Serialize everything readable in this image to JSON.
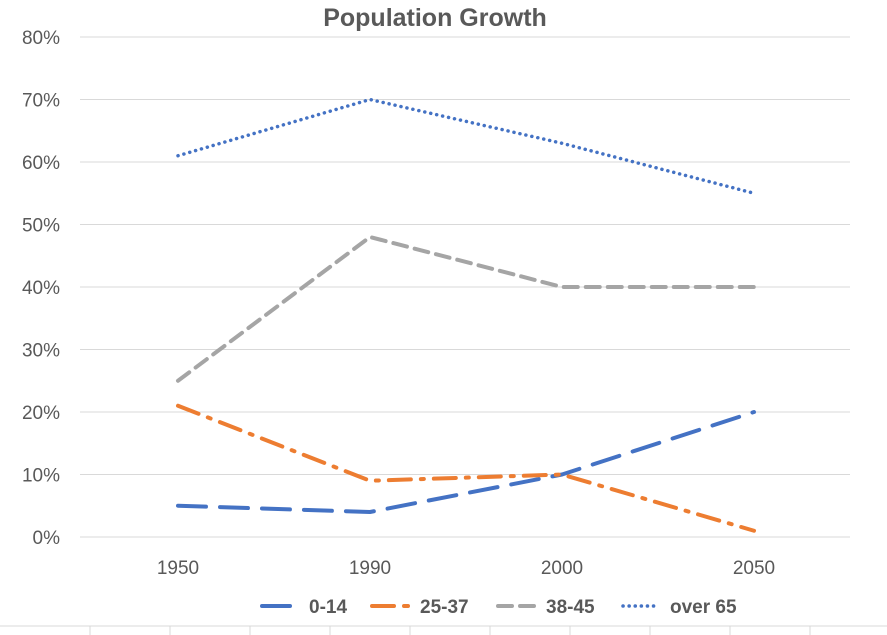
{
  "chart_data": {
    "type": "line",
    "title": "Population Growth",
    "xlabel": "",
    "ylabel": "",
    "categories": [
      "1950",
      "1990",
      "2000",
      "2050"
    ],
    "ylim": [
      0,
      80
    ],
    "yticks": [
      0,
      10,
      20,
      30,
      40,
      50,
      60,
      70,
      80
    ],
    "ytick_labels": [
      "0%",
      "10%",
      "20%",
      "30%",
      "40%",
      "50%",
      "60%",
      "70%",
      "80%"
    ],
    "grid": true,
    "legend_position": "bottom",
    "series": [
      {
        "name": "0-14",
        "values": [
          5,
          4,
          10,
          20
        ],
        "color": "#4472c4",
        "dash": "long-dash"
      },
      {
        "name": "25-37",
        "values": [
          21,
          9,
          10,
          1
        ],
        "color": "#ed7d31",
        "dash": "long-dash-dot"
      },
      {
        "name": "38-45",
        "values": [
          25,
          48,
          40,
          40
        ],
        "color": "#a5a5a5",
        "dash": "dash"
      },
      {
        "name": "over 65",
        "values": [
          61,
          70,
          63,
          55
        ],
        "color": "#4472c4",
        "dash": "round-dot"
      }
    ]
  }
}
